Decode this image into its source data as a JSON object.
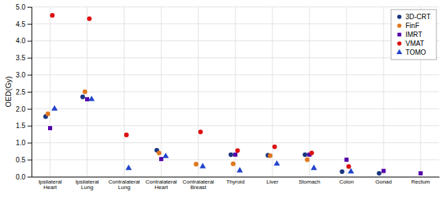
{
  "chart_data": {
    "type": "scatter",
    "categories": [
      "Ipsilateral\nHeart",
      "Ipsilateral\nLung",
      "Contralateral\nLung",
      "Contralateral\nHeart",
      "Contralateral\nBreast",
      "Thyroid",
      "Liver",
      "Stomach",
      "Colon",
      "Gonad",
      "Rectum"
    ],
    "series": [
      {
        "name": "3D-CRT",
        "color": "#1a3580",
        "marker": "circle",
        "values": [
          1.77,
          2.35,
          null,
          0.78,
          null,
          0.65,
          0.63,
          0.65,
          0.15,
          0.1,
          null
        ]
      },
      {
        "name": "FinF",
        "color": "#e07820",
        "marker": "circle",
        "values": [
          1.85,
          2.5,
          null,
          0.7,
          0.37,
          0.38,
          0.62,
          0.5,
          null,
          null,
          null
        ]
      },
      {
        "name": "IMRT",
        "color": "#5500aa",
        "marker": "square",
        "values": [
          1.43,
          2.28,
          null,
          0.52,
          null,
          0.65,
          null,
          0.65,
          0.5,
          0.17,
          0.1
        ]
      },
      {
        "name": "VMAT",
        "color": "#dd1111",
        "marker": "circle",
        "values": [
          4.75,
          4.65,
          1.23,
          null,
          1.32,
          0.77,
          0.88,
          0.7,
          0.3,
          null,
          null
        ]
      },
      {
        "name": "TOMO",
        "color": "#2244cc",
        "marker": "triangle",
        "values": [
          2.0,
          2.28,
          0.25,
          0.6,
          0.3,
          0.18,
          0.38,
          0.25,
          0.15,
          null,
          null
        ]
      }
    ],
    "ylabel": "OED(Gy)",
    "ylim": [
      0,
      5
    ],
    "yticks": [
      {
        "value": 0,
        "label": "0.0"
      },
      0.5,
      {
        "value": 1.0,
        "label": "1.0"
      },
      1.5,
      {
        "value": 2.0,
        "label": "2.0"
      },
      2.5,
      {
        "value": 3.0,
        "label": "3.0"
      },
      3.5,
      {
        "value": 4.0,
        "label": "4.0"
      },
      4.5,
      {
        "value": 5.0,
        "label": "5.0"
      }
    ],
    "grid": true,
    "legend": "upper right"
  }
}
